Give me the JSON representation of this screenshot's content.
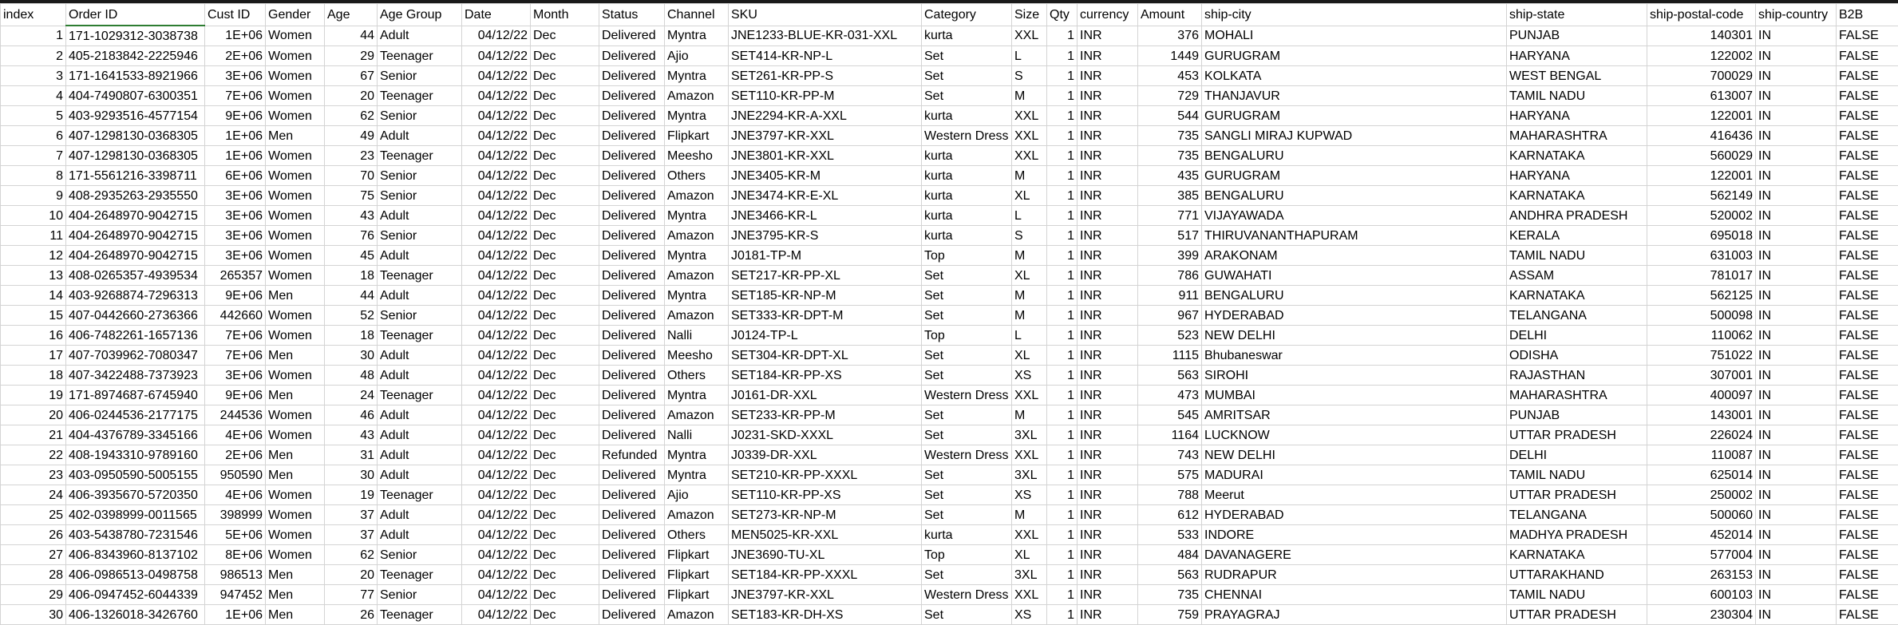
{
  "headers": [
    "index",
    "Order ID",
    "Cust ID",
    "Gender",
    "Age",
    "Age Group",
    "Date",
    "Month",
    "Status",
    "Channel",
    "SKU",
    "Category",
    "Size",
    "Qty",
    "currency",
    "Amount",
    "ship-city",
    "ship-state",
    "ship-postal-code",
    "ship-country",
    "B2B"
  ],
  "align": [
    "r",
    "l",
    "r",
    "l",
    "r",
    "l",
    "r",
    "l",
    "l",
    "l",
    "l",
    "l",
    "l",
    "r",
    "l",
    "r",
    "l",
    "l",
    "r",
    "l",
    "l"
  ],
  "rows": [
    [
      "1",
      "171-1029312-3038738",
      "1E+06",
      "Women",
      "44",
      "Adult",
      "04/12/22",
      "Dec",
      "Delivered",
      "Myntra",
      "JNE1233-BLUE-KR-031-XXL",
      "kurta",
      "XXL",
      "1",
      "INR",
      "376",
      "MOHALI",
      "PUNJAB",
      "140301",
      "IN",
      "FALSE"
    ],
    [
      "2",
      "405-2183842-2225946",
      "2E+06",
      "Women",
      "29",
      "Teenager",
      "04/12/22",
      "Dec",
      "Delivered",
      "Ajio",
      "SET414-KR-NP-L",
      "Set",
      "L",
      "1",
      "INR",
      "1449",
      "GURUGRAM",
      "HARYANA",
      "122002",
      "IN",
      "FALSE"
    ],
    [
      "3",
      "171-1641533-8921966",
      "3E+06",
      "Women",
      "67",
      "Senior",
      "04/12/22",
      "Dec",
      "Delivered",
      "Myntra",
      "SET261-KR-PP-S",
      "Set",
      "S",
      "1",
      "INR",
      "453",
      "KOLKATA",
      "WEST BENGAL",
      "700029",
      "IN",
      "FALSE"
    ],
    [
      "4",
      "404-7490807-6300351",
      "7E+06",
      "Women",
      "20",
      "Teenager",
      "04/12/22",
      "Dec",
      "Delivered",
      "Amazon",
      "SET110-KR-PP-M",
      "Set",
      "M",
      "1",
      "INR",
      "729",
      "THANJAVUR",
      "TAMIL NADU",
      "613007",
      "IN",
      "FALSE"
    ],
    [
      "5",
      "403-9293516-4577154",
      "9E+06",
      "Women",
      "62",
      "Senior",
      "04/12/22",
      "Dec",
      "Delivered",
      "Myntra",
      "JNE2294-KR-A-XXL",
      "kurta",
      "XXL",
      "1",
      "INR",
      "544",
      "GURUGRAM",
      "HARYANA",
      "122001",
      "IN",
      "FALSE"
    ],
    [
      "6",
      "407-1298130-0368305",
      "1E+06",
      "Men",
      "49",
      "Adult",
      "04/12/22",
      "Dec",
      "Delivered",
      "Flipkart",
      "JNE3797-KR-XXL",
      "Western Dress",
      "XXL",
      "1",
      "INR",
      "735",
      "SANGLI MIRAJ KUPWAD",
      "MAHARASHTRA",
      "416436",
      "IN",
      "FALSE"
    ],
    [
      "7",
      "407-1298130-0368305",
      "1E+06",
      "Women",
      "23",
      "Teenager",
      "04/12/22",
      "Dec",
      "Delivered",
      "Meesho",
      "JNE3801-KR-XXL",
      "kurta",
      "XXL",
      "1",
      "INR",
      "735",
      "BENGALURU",
      "KARNATAKA",
      "560029",
      "IN",
      "FALSE"
    ],
    [
      "8",
      "171-5561216-3398711",
      "6E+06",
      "Women",
      "70",
      "Senior",
      "04/12/22",
      "Dec",
      "Delivered",
      "Others",
      "JNE3405-KR-M",
      "kurta",
      "M",
      "1",
      "INR",
      "435",
      "GURUGRAM",
      "HARYANA",
      "122001",
      "IN",
      "FALSE"
    ],
    [
      "9",
      "408-2935263-2935550",
      "3E+06",
      "Women",
      "75",
      "Senior",
      "04/12/22",
      "Dec",
      "Delivered",
      "Amazon",
      "JNE3474-KR-E-XL",
      "kurta",
      "XL",
      "1",
      "INR",
      "385",
      "BENGALURU",
      "KARNATAKA",
      "562149",
      "IN",
      "FALSE"
    ],
    [
      "10",
      "404-2648970-9042715",
      "3E+06",
      "Women",
      "43",
      "Adult",
      "04/12/22",
      "Dec",
      "Delivered",
      "Myntra",
      "JNE3466-KR-L",
      "kurta",
      "L",
      "1",
      "INR",
      "771",
      "VIJAYAWADA",
      "ANDHRA PRADESH",
      "520002",
      "IN",
      "FALSE"
    ],
    [
      "11",
      "404-2648970-9042715",
      "3E+06",
      "Women",
      "76",
      "Senior",
      "04/12/22",
      "Dec",
      "Delivered",
      "Amazon",
      "JNE3795-KR-S",
      "kurta",
      "S",
      "1",
      "INR",
      "517",
      "THIRUVANANTHAPURAM",
      "KERALA",
      "695018",
      "IN",
      "FALSE"
    ],
    [
      "12",
      "404-2648970-9042715",
      "3E+06",
      "Women",
      "45",
      "Adult",
      "04/12/22",
      "Dec",
      "Delivered",
      "Myntra",
      "J0181-TP-M",
      "Top",
      "M",
      "1",
      "INR",
      "399",
      "ARAKONAM",
      "TAMIL NADU",
      "631003",
      "IN",
      "FALSE"
    ],
    [
      "13",
      "408-0265357-4939534",
      "265357",
      "Women",
      "18",
      "Teenager",
      "04/12/22",
      "Dec",
      "Delivered",
      "Amazon",
      "SET217-KR-PP-XL",
      "Set",
      "XL",
      "1",
      "INR",
      "786",
      "GUWAHATI",
      "ASSAM",
      "781017",
      "IN",
      "FALSE"
    ],
    [
      "14",
      "403-9268874-7296313",
      "9E+06",
      "Men",
      "44",
      "Adult",
      "04/12/22",
      "Dec",
      "Delivered",
      "Myntra",
      "SET185-KR-NP-M",
      "Set",
      "M",
      "1",
      "INR",
      "911",
      "BENGALURU",
      "KARNATAKA",
      "562125",
      "IN",
      "FALSE"
    ],
    [
      "15",
      "407-0442660-2736366",
      "442660",
      "Women",
      "52",
      "Senior",
      "04/12/22",
      "Dec",
      "Delivered",
      "Amazon",
      "SET333-KR-DPT-M",
      "Set",
      "M",
      "1",
      "INR",
      "967",
      "HYDERABAD",
      "TELANGANA",
      "500098",
      "IN",
      "FALSE"
    ],
    [
      "16",
      "406-7482261-1657136",
      "7E+06",
      "Women",
      "18",
      "Teenager",
      "04/12/22",
      "Dec",
      "Delivered",
      "Nalli",
      "J0124-TP-L",
      "Top",
      "L",
      "1",
      "INR",
      "523",
      "NEW DELHI",
      "DELHI",
      "110062",
      "IN",
      "FALSE"
    ],
    [
      "17",
      "407-7039962-7080347",
      "7E+06",
      "Men",
      "30",
      "Adult",
      "04/12/22",
      "Dec",
      "Delivered",
      "Meesho",
      "SET304-KR-DPT-XL",
      "Set",
      "XL",
      "1",
      "INR",
      "1115",
      "Bhubaneswar",
      "ODISHA",
      "751022",
      "IN",
      "FALSE"
    ],
    [
      "18",
      "407-3422488-7373923",
      "3E+06",
      "Women",
      "48",
      "Adult",
      "04/12/22",
      "Dec",
      "Delivered",
      "Others",
      "SET184-KR-PP-XS",
      "Set",
      "XS",
      "1",
      "INR",
      "563",
      "SIROHI",
      "RAJASTHAN",
      "307001",
      "IN",
      "FALSE"
    ],
    [
      "19",
      "171-8974687-6745940",
      "9E+06",
      "Men",
      "24",
      "Teenager",
      "04/12/22",
      "Dec",
      "Delivered",
      "Myntra",
      "J0161-DR-XXL",
      "Western Dress",
      "XXL",
      "1",
      "INR",
      "473",
      "MUMBAI",
      "MAHARASHTRA",
      "400097",
      "IN",
      "FALSE"
    ],
    [
      "20",
      "406-0244536-2177175",
      "244536",
      "Women",
      "46",
      "Adult",
      "04/12/22",
      "Dec",
      "Delivered",
      "Amazon",
      "SET233-KR-PP-M",
      "Set",
      "M",
      "1",
      "INR",
      "545",
      "AMRITSAR",
      "PUNJAB",
      "143001",
      "IN",
      "FALSE"
    ],
    [
      "21",
      "404-4376789-3345166",
      "4E+06",
      "Women",
      "43",
      "Adult",
      "04/12/22",
      "Dec",
      "Delivered",
      "Nalli",
      "J0231-SKD-XXXL",
      "Set",
      "3XL",
      "1",
      "INR",
      "1164",
      "LUCKNOW",
      "UTTAR PRADESH",
      "226024",
      "IN",
      "FALSE"
    ],
    [
      "22",
      "408-1943310-9789160",
      "2E+06",
      "Men",
      "31",
      "Adult",
      "04/12/22",
      "Dec",
      "Refunded",
      "Myntra",
      "J0339-DR-XXL",
      "Western Dress",
      "XXL",
      "1",
      "INR",
      "743",
      "NEW DELHI",
      "DELHI",
      "110087",
      "IN",
      "FALSE"
    ],
    [
      "23",
      "403-0950590-5005155",
      "950590",
      "Men",
      "30",
      "Adult",
      "04/12/22",
      "Dec",
      "Delivered",
      "Myntra",
      "SET210-KR-PP-XXXL",
      "Set",
      "3XL",
      "1",
      "INR",
      "575",
      "MADURAI",
      "TAMIL NADU",
      "625014",
      "IN",
      "FALSE"
    ],
    [
      "24",
      "406-3935670-5720350",
      "4E+06",
      "Women",
      "19",
      "Teenager",
      "04/12/22",
      "Dec",
      "Delivered",
      "Ajio",
      "SET110-KR-PP-XS",
      "Set",
      "XS",
      "1",
      "INR",
      "788",
      "Meerut",
      "UTTAR PRADESH",
      "250002",
      "IN",
      "FALSE"
    ],
    [
      "25",
      "402-0398999-0011565",
      "398999",
      "Women",
      "37",
      "Adult",
      "04/12/22",
      "Dec",
      "Delivered",
      "Amazon",
      "SET273-KR-NP-M",
      "Set",
      "M",
      "1",
      "INR",
      "612",
      "HYDERABAD",
      "TELANGANA",
      "500060",
      "IN",
      "FALSE"
    ],
    [
      "26",
      "403-5438780-7231546",
      "5E+06",
      "Women",
      "37",
      "Adult",
      "04/12/22",
      "Dec",
      "Delivered",
      "Others",
      "MEN5025-KR-XXL",
      "kurta",
      "XXL",
      "1",
      "INR",
      "533",
      "INDORE",
      "MADHYA PRADESH",
      "452014",
      "IN",
      "FALSE"
    ],
    [
      "27",
      "406-8343960-8137102",
      "8E+06",
      "Women",
      "62",
      "Senior",
      "04/12/22",
      "Dec",
      "Delivered",
      "Flipkart",
      "JNE3690-TU-XL",
      "Top",
      "XL",
      "1",
      "INR",
      "484",
      "DAVANAGERE",
      "KARNATAKA",
      "577004",
      "IN",
      "FALSE"
    ],
    [
      "28",
      "406-0986513-0498758",
      "986513",
      "Men",
      "20",
      "Teenager",
      "04/12/22",
      "Dec",
      "Delivered",
      "Flipkart",
      "SET184-KR-PP-XXXL",
      "Set",
      "3XL",
      "1",
      "INR",
      "563",
      "RUDRAPUR",
      "UTTARAKHAND",
      "263153",
      "IN",
      "FALSE"
    ],
    [
      "29",
      "406-0947452-6044339",
      "947452",
      "Men",
      "77",
      "Senior",
      "04/12/22",
      "Dec",
      "Delivered",
      "Flipkart",
      "JNE3797-KR-XXL",
      "Western Dress",
      "XXL",
      "1",
      "INR",
      "735",
      "CHENNAI",
      "TAMIL NADU",
      "600103",
      "IN",
      "FALSE"
    ],
    [
      "30",
      "406-1326018-3426760",
      "1E+06",
      "Men",
      "26",
      "Teenager",
      "04/12/22",
      "Dec",
      "Delivered",
      "Amazon",
      "SET183-KR-DH-XS",
      "Set",
      "XS",
      "1",
      "INR",
      "759",
      "PRAYAGRAJ",
      "UTTAR PRADESH",
      "230304",
      "IN",
      "FALSE"
    ]
  ]
}
